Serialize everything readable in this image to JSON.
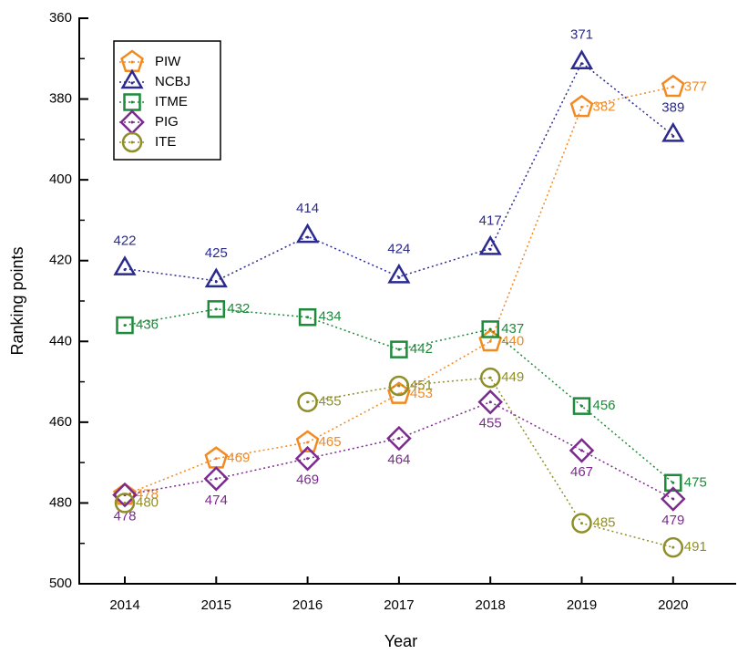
{
  "chart_data": {
    "type": "line",
    "x_label": "Year",
    "y_label": "Ranking points",
    "categories": [
      "2014",
      "2015",
      "2016",
      "2017",
      "2018",
      "2019",
      "2020"
    ],
    "ylim": [
      360,
      500
    ],
    "y_inverted": true,
    "yticks": [
      360,
      380,
      400,
      420,
      440,
      460,
      480,
      500
    ],
    "legend": "upper left",
    "series": [
      {
        "name": "PIW",
        "color": "#f28a20",
        "marker": "pentagon",
        "values": [
          478,
          469,
          465,
          453,
          440,
          382,
          377
        ]
      },
      {
        "name": "NCBJ",
        "color": "#2b2a8f",
        "marker": "triangle",
        "values": [
          422,
          425,
          414,
          424,
          417,
          371,
          389
        ]
      },
      {
        "name": "ITME",
        "color": "#1f8a3c",
        "marker": "square",
        "values": [
          436,
          432,
          434,
          442,
          437,
          456,
          475
        ]
      },
      {
        "name": "PIG",
        "color": "#7b2a8e",
        "marker": "diamond",
        "values": [
          478,
          474,
          469,
          464,
          455,
          467,
          479
        ]
      },
      {
        "name": "ITE",
        "color": "#8f8f2a",
        "marker": "circle",
        "values": [
          480,
          null,
          455,
          451,
          449,
          485,
          491
        ]
      }
    ]
  }
}
